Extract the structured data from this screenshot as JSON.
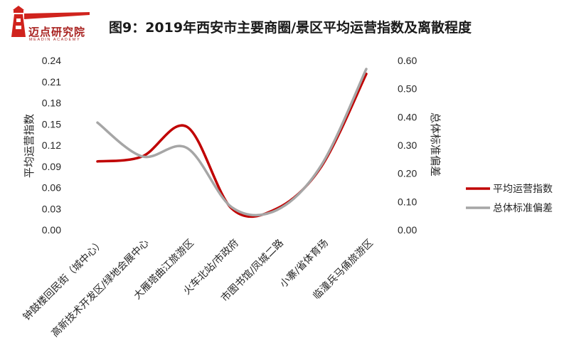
{
  "logo": {
    "name": "迈点研究院",
    "subtitle": "MEADIN ACADEMY",
    "color": "#A8201E"
  },
  "chart_data": {
    "type": "line",
    "title": "图9：2019年西安市主要商圈/景区平均运营指数及离散程度",
    "categories": [
      "钟鼓楼回民街（城中心）",
      "高新技术开发区/绿地会展中心",
      "大雁塔曲江旅游区",
      "火车北站/市政府",
      "市图书馆/凤城二路",
      "小寨/省体育场",
      "临潼兵马俑旅游区"
    ],
    "series": [
      {
        "name": "平均运营指数",
        "axis": "left",
        "color": "#C00000",
        "values": [
          0.097,
          0.104,
          0.146,
          0.03,
          0.03,
          0.09,
          0.221
        ]
      },
      {
        "name": "总体标准偏差",
        "axis": "right",
        "color": "#A6A6A6",
        "values": [
          0.38,
          0.26,
          0.29,
          0.08,
          0.07,
          0.23,
          0.57
        ]
      }
    ],
    "ylabel": "平均运营指数",
    "y2label": "总体标准偏差",
    "ylim": [
      0,
      0.24
    ],
    "y2lim": [
      0,
      0.6
    ],
    "yticks": [
      "0.00",
      "0.03",
      "0.06",
      "0.09",
      "0.12",
      "0.15",
      "0.18",
      "0.21",
      "0.24"
    ],
    "y2ticks": [
      "0.00",
      "0.10",
      "0.20",
      "0.30",
      "0.40",
      "0.50",
      "0.60"
    ],
    "smooth": true,
    "grid": false,
    "legend": "right"
  }
}
